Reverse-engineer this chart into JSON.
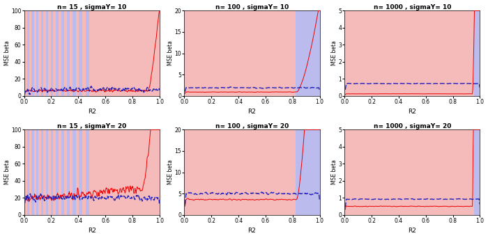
{
  "panels": [
    {
      "title": "n= 15 , sigmaY= 10",
      "n": 15,
      "sigma": 10,
      "ylim": [
        0,
        100
      ],
      "yticks": [
        0,
        20,
        40,
        60,
        80,
        100
      ]
    },
    {
      "title": "n= 100 , sigmaY= 10",
      "n": 100,
      "sigma": 10,
      "ylim": [
        0,
        20
      ],
      "yticks": [
        0,
        5,
        10,
        15,
        20
      ]
    },
    {
      "title": "n= 1000 , sigmaY= 10",
      "n": 1000,
      "sigma": 10,
      "ylim": [
        0,
        5
      ],
      "yticks": [
        0,
        1,
        2,
        3,
        4,
        5
      ]
    },
    {
      "title": "n= 15 , sigmaY= 20",
      "n": 15,
      "sigma": 20,
      "ylim": [
        0,
        100
      ],
      "yticks": [
        0,
        20,
        40,
        60,
        80,
        100
      ]
    },
    {
      "title": "n= 100 , sigmaY= 20",
      "n": 100,
      "sigma": 20,
      "ylim": [
        0,
        20
      ],
      "yticks": [
        0,
        5,
        10,
        15,
        20
      ]
    },
    {
      "title": "n= 1000 , sigmaY= 20",
      "n": 1000,
      "sigma": 20,
      "ylim": [
        0,
        5
      ],
      "yticks": [
        0,
        1,
        2,
        3,
        4,
        5
      ]
    }
  ],
  "red_line": "#EE0000",
  "blue_line": "#2222BB",
  "red_bg": "#F5BBBB",
  "blue_bg": "#BBBBEE",
  "xlabel": "R2",
  "ylabel": "MSE beta",
  "npoints": 400,
  "n15_stripes": [
    0.0,
    0.022,
    0.038,
    0.055,
    0.072,
    0.09,
    0.107,
    0.124,
    0.142,
    0.16,
    0.178,
    0.196,
    0.215,
    0.234,
    0.254,
    0.274,
    0.295,
    0.316,
    0.338,
    0.36,
    0.383,
    0.406,
    0.43,
    0.455,
    0.48,
    1.001
  ],
  "n100_split_sigma10": 0.82,
  "n100_split_sigma20": 0.82,
  "n1000_split_sigma10": 0.955,
  "n1000_split_sigma20": 0.955
}
